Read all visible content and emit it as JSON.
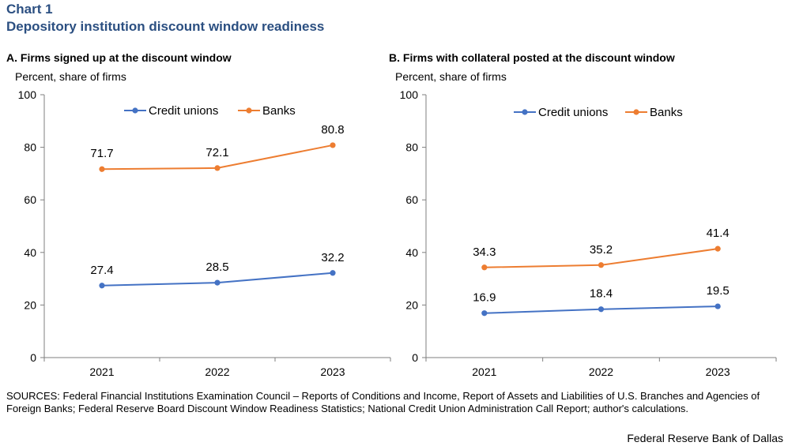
{
  "header": {
    "chart_number": "Chart 1",
    "title": "Depository institution discount window readiness"
  },
  "footer": {
    "sources": "SOURCES: Federal Financial Institutions Examination Council – Reports of Conditions and Income, Report of Assets and Liabilities of U.S. Branches and Agencies of Foreign Banks; Federal Reserve Board Discount Window Readiness Statistics; National Credit Union Administration Call Report; author's calculations.",
    "credit": "Federal Reserve Bank of Dallas"
  },
  "colors": {
    "credit_unions": "#4472c4",
    "banks": "#ed7d31"
  },
  "chart_data": [
    {
      "type": "line",
      "title": "A. Firms signed up at the discount window",
      "ylabel": "Percent, share of firms",
      "xlabel": "",
      "categories": [
        "2021",
        "2022",
        "2023"
      ],
      "ylim": [
        0,
        100
      ],
      "yticks": [
        0,
        20,
        40,
        60,
        80,
        100
      ],
      "legend_position": "top-center",
      "grid": false,
      "series": [
        {
          "name": "Credit unions",
          "values": [
            27.4,
            28.5,
            32.2
          ],
          "labels": [
            "27.4",
            "28.5",
            "32.2"
          ]
        },
        {
          "name": "Banks",
          "values": [
            71.7,
            72.1,
            80.8
          ],
          "labels": [
            "71.7",
            "72.1",
            "80.8"
          ]
        }
      ]
    },
    {
      "type": "line",
      "title": "B. Firms with collateral posted at the discount window",
      "ylabel": "Percent, share of firms",
      "xlabel": "",
      "categories": [
        "2021",
        "2022",
        "2023"
      ],
      "ylim": [
        0,
        100
      ],
      "yticks": [
        0,
        20,
        40,
        60,
        80,
        100
      ],
      "legend_position": "top-center",
      "grid": false,
      "series": [
        {
          "name": "Credit unions",
          "values": [
            16.9,
            18.4,
            19.5
          ],
          "labels": [
            "16.9",
            "18.4",
            "19.5"
          ]
        },
        {
          "name": "Banks",
          "values": [
            34.3,
            35.2,
            41.4
          ],
          "labels": [
            "34.3",
            "35.2",
            "41.4"
          ]
        }
      ]
    }
  ]
}
